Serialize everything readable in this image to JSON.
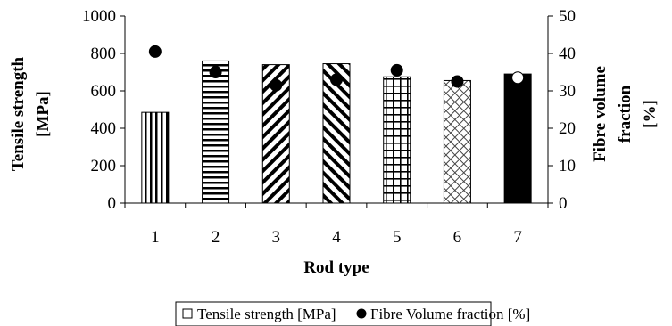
{
  "chart_data": {
    "type": "bar",
    "title": "",
    "xlabel": "Rod type",
    "ylabel": "Tensile strength\n[MPa]",
    "y2label": "Fibre volume\nfraction\n[%]",
    "categories": [
      "1",
      "2",
      "3",
      "4",
      "5",
      "6",
      "7"
    ],
    "ylim": [
      0,
      1000
    ],
    "y2lim": [
      0,
      50
    ],
    "yticks": [
      "0",
      "200",
      "400",
      "600",
      "800",
      "1000"
    ],
    "y2ticks": [
      "0",
      "10",
      "20",
      "30",
      "40",
      "50"
    ],
    "grid": false,
    "legend_position": "bottom",
    "series": [
      {
        "name": "Tensile strength [MPa]",
        "type": "bar",
        "axis": "left",
        "values": [
          485,
          760,
          740,
          745,
          675,
          655,
          690
        ],
        "patterns": [
          "vertical",
          "horizontal",
          "diagonal-up",
          "diagonal-down",
          "grid",
          "crosshatch",
          "solid"
        ]
      },
      {
        "name": "Fibre Volume fraction [%]",
        "type": "scatter",
        "axis": "right",
        "values": [
          40.5,
          35,
          31.5,
          33,
          35.5,
          32.5,
          33.5
        ],
        "marker_fills": [
          "#000000",
          "#000000",
          "#000000",
          "#000000",
          "#000000",
          "#000000",
          "#ffffff"
        ]
      }
    ]
  }
}
